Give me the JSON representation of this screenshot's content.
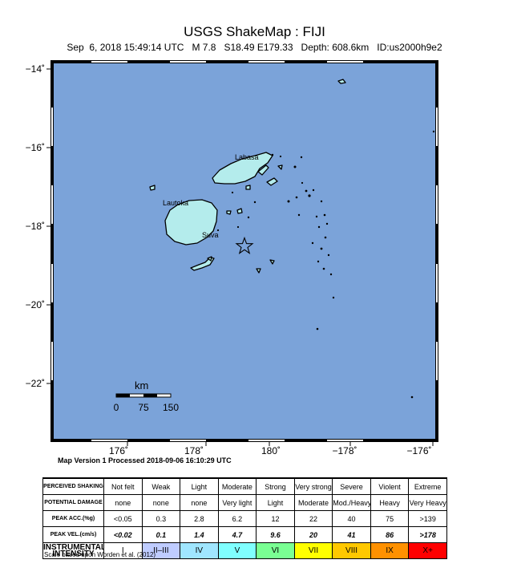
{
  "header": {
    "title": "USGS ShakeMap : FIJI",
    "subtitle": "Sep  6, 2018 15:49:14 UTC   M 7.8   S18.49 E179.33   Depth: 608.6km   ID:us2000h9e2"
  },
  "map": {
    "lon_labels": [
      "176˚",
      "178˚",
      "180˚",
      "−178˚",
      "−176˚"
    ],
    "lat_labels": [
      "−14˚",
      "−16˚",
      "−18˚",
      "−20˚",
      "−22˚"
    ],
    "place_labels": [
      "Labasa",
      "Lautoka",
      "Suva"
    ],
    "epicenter_symbol": "star",
    "water_color": "#7ba3d9",
    "land_color": "#b4ecec",
    "scalebar": {
      "unit": "km",
      "ticks": [
        "0",
        "75",
        "150"
      ]
    }
  },
  "processing": "Map Version 1 Processed 2018-09-06 16:10:29 UTC",
  "legend": {
    "rows": [
      {
        "header": "PERCEIVED SHAKING",
        "cells": [
          "Not felt",
          "Weak",
          "Light",
          "Moderate",
          "Strong",
          "Very strong",
          "Severe",
          "Violent",
          "Extreme"
        ]
      },
      {
        "header": "POTENTIAL DAMAGE",
        "cells": [
          "none",
          "none",
          "none",
          "Very light",
          "Light",
          "Moderate",
          "Mod./Heavy",
          "Heavy",
          "Very Heavy"
        ]
      },
      {
        "header": "PEAK ACC.(%g)",
        "cells": [
          "<0.05",
          "0.3",
          "2.8",
          "6.2",
          "12",
          "22",
          "40",
          "75",
          ">139"
        ]
      },
      {
        "header": "PEAK VEL.(cm/s)",
        "cells": [
          "<0.02",
          "0.1",
          "1.4",
          "4.7",
          "9.6",
          "20",
          "41",
          "86",
          ">178"
        ]
      },
      {
        "header": "INSTRUMENTAL INTENSITY",
        "cells": [
          "I",
          "II–III",
          "IV",
          "V",
          "VI",
          "VII",
          "VIII",
          "IX",
          "X+"
        ]
      }
    ],
    "intensity_colors": [
      "#ffffff",
      "#bfccff",
      "#a0e6ff",
      "#80ffff",
      "#7aff93",
      "#ffff00",
      "#ffc800",
      "#ff9100",
      "#ff0000"
    ],
    "scale_reference": "Scale based upon Worden et al. (2012)"
  }
}
